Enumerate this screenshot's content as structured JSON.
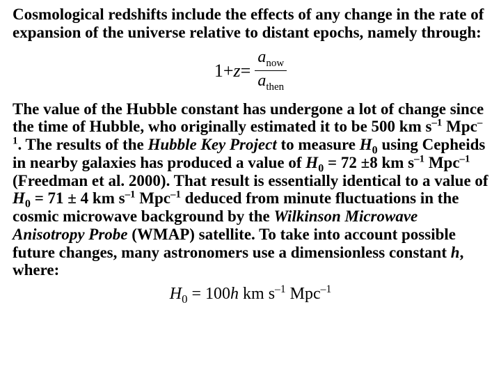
{
  "para1_a": "Cosmological redshifts include the effects of any change in the rate of expansion of the universe relative to distant epochs, namely through:",
  "eq1": {
    "lhs_1": "1",
    "lhs_plus": " + ",
    "lhs_z": "z",
    "equals": " = ",
    "num_a": "a",
    "num_sub": "now",
    "den_a": "a",
    "den_sub": "then"
  },
  "p2": {
    "t1": "The value of the Hubble constant has undergone a lot of change since the time of Hubble, who originally estimated it to be 500 km s",
    "sup1": "–1",
    "t2": " Mpc",
    "sup2": "–1",
    "t3": ". The results of the ",
    "i1": "Hubble Key Project",
    "t4": " to measure ",
    "i2": "H",
    "sub1": "0",
    "t5": " using Cepheids in nearby galaxies has produced a value of ",
    "i3": "H",
    "sub2": "0",
    "t6": " = 72 ±8 km s",
    "sup3": "–1",
    "t7": " Mpc",
    "sup4": "–1",
    "t8": " (Freedman et al. 2000). That result is essentially identical to a value of ",
    "i4": "H",
    "sub3": "0",
    "t9": " = 71 ± 4 km s",
    "sup5": "–1",
    "t10": " Mpc",
    "sup6": "–1",
    "t11": " deduced from minute fluctuations in the cosmic microwave background by the ",
    "i5": "Wilkinson Microwave Anisotropy Probe",
    "t12": " (WMAP) satellite. To take into account possible future changes, many astronomers use a dimensionless constant ",
    "i6": "h",
    "t13": ", where:"
  },
  "eq2": {
    "H": "H",
    "sub0": "0",
    "eq": " = ",
    "hundred": "100",
    "h": "h",
    "sp": " ",
    "km": "km",
    "s": "s",
    "supA": "–1",
    "mpc": "Mpc",
    "supB": "–1"
  }
}
